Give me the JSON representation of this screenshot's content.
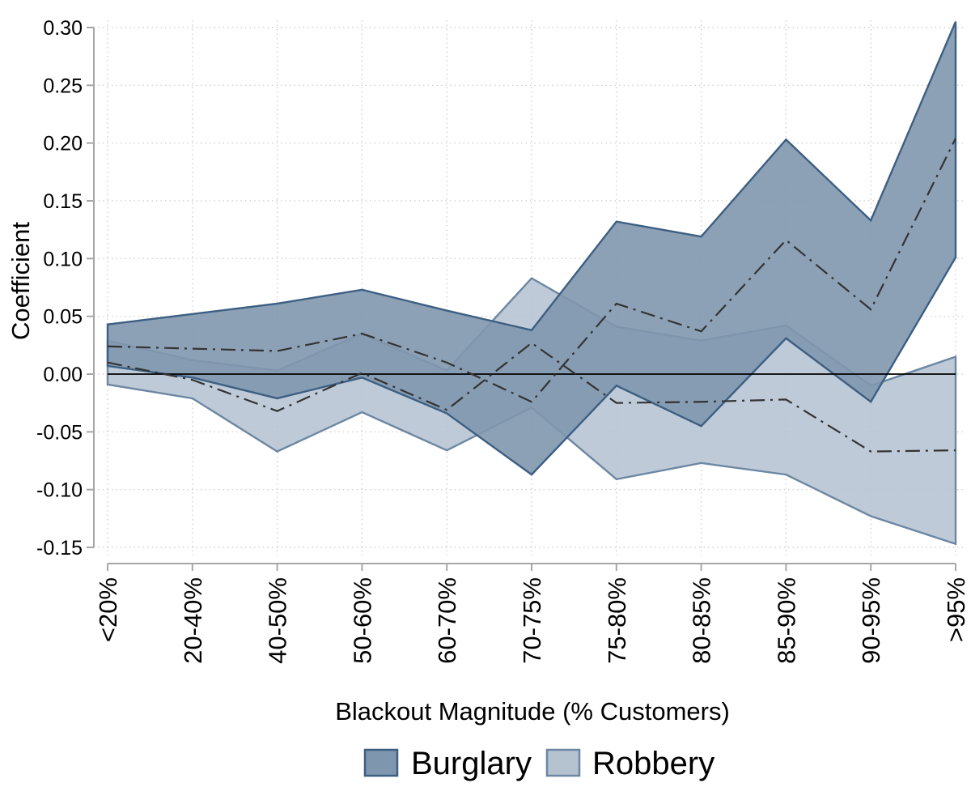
{
  "chart_data": {
    "type": "area",
    "title": "",
    "xlabel": "Blackout Magnitude (% Customers)",
    "ylabel": "Coefficient",
    "categories": [
      "<20%",
      "20-40%",
      "40-50%",
      "50-60%",
      "60-70%",
      "70-75%",
      "75-80%",
      "80-85%",
      "85-90%",
      "90-95%",
      ">95%"
    ],
    "ylim": [
      -0.15,
      0.3
    ],
    "yticks": [
      0.3,
      0.25,
      0.2,
      0.15,
      0.1,
      0.05,
      0.0,
      -0.05,
      -0.1,
      -0.15
    ],
    "ytick_labels": [
      "0.30",
      "0.25",
      "0.20",
      "0.15",
      "0.10",
      "0.05",
      "0.00",
      "-0.05",
      "-0.10",
      "-0.15"
    ],
    "grid": true,
    "legend_position": "bottom",
    "series": [
      {
        "name": "Burglary",
        "color": "#3d5f82",
        "fill": "#7f97ae",
        "upper": [
          0.043,
          0.052,
          0.061,
          0.073,
          0.055,
          0.038,
          0.132,
          0.119,
          0.203,
          0.133,
          0.305
        ],
        "lower": [
          0.007,
          -0.003,
          -0.021,
          -0.003,
          -0.034,
          -0.087,
          -0.01,
          -0.045,
          0.031,
          -0.024,
          0.101
        ],
        "estimate": [
          0.024,
          0.022,
          0.02,
          0.035,
          0.01,
          -0.024,
          0.061,
          0.037,
          0.116,
          0.056,
          0.204
        ]
      },
      {
        "name": "Robbery",
        "color": "#6d87a3",
        "fill": "#b5c3d1",
        "upper": [
          0.029,
          0.012,
          0.003,
          0.035,
          0.003,
          0.083,
          0.041,
          0.029,
          0.042,
          -0.01,
          0.015
        ],
        "lower": [
          -0.009,
          -0.021,
          -0.067,
          -0.033,
          -0.066,
          -0.029,
          -0.091,
          -0.077,
          -0.087,
          -0.123,
          -0.147
        ],
        "estimate": [
          0.01,
          -0.005,
          -0.032,
          0.001,
          -0.031,
          0.027,
          -0.025,
          -0.024,
          -0.022,
          -0.067,
          -0.066
        ]
      }
    ]
  }
}
